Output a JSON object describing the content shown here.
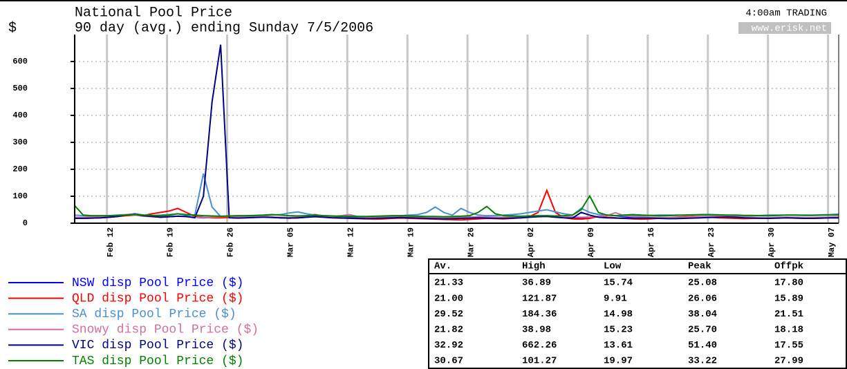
{
  "chart_data": {
    "type": "line",
    "title": "National Pool Price",
    "subtitle": "90 day (avg.) ending Sunday 7/5/2006",
    "annotation": "4:00am TRADING",
    "source": "www.erisk.net",
    "y_label": "$",
    "categories": [
      null,
      null,
      null,
      null,
      "Feb 12",
      null,
      null,
      null,
      null,
      null,
      null,
      "Feb 19",
      null,
      null,
      null,
      null,
      null,
      null,
      "Feb 26",
      null,
      null,
      null,
      null,
      null,
      null,
      "Mar 05",
      null,
      null,
      null,
      null,
      null,
      null,
      "Mar 12",
      null,
      null,
      null,
      null,
      null,
      null,
      "Mar 19",
      null,
      null,
      null,
      null,
      null,
      null,
      "Mar 26",
      null,
      null,
      null,
      null,
      null,
      null,
      "Apr 02",
      null,
      null,
      null,
      null,
      null,
      null,
      "Apr 09",
      null,
      null,
      null,
      null,
      null,
      null,
      "Apr 16",
      null,
      null,
      null,
      null,
      null,
      null,
      "Apr 23",
      null,
      null,
      null,
      null,
      null,
      null,
      "Apr 30",
      null,
      null,
      null,
      null,
      null,
      null,
      "May 07",
      null
    ],
    "ylim": [
      0,
      700
    ],
    "yticks": [
      0,
      100,
      200,
      300,
      400,
      500,
      600
    ],
    "grid": true,
    "x_grid": true,
    "series": [
      {
        "name": "NSW disp Pool Price ($)",
        "color": "#0000ff",
        "values": [
          18,
          18,
          19,
          20,
          22,
          25,
          30,
          35,
          30,
          25,
          22,
          24,
          26,
          25,
          22,
          20,
          22,
          24,
          22,
          20,
          21,
          22,
          23,
          22,
          20,
          19,
          20,
          22,
          25,
          23,
          21,
          20,
          20,
          19,
          18,
          19,
          20,
          21,
          22,
          21,
          20,
          19,
          18,
          18,
          19,
          20,
          21,
          22,
          21,
          20,
          20,
          21,
          22,
          24,
          26,
          28,
          24,
          22,
          21,
          20,
          22,
          25,
          30,
          28,
          24,
          22,
          21,
          20,
          20,
          19,
          19,
          20,
          21,
          22,
          23,
          24,
          25,
          24,
          22,
          21,
          20,
          20,
          21,
          22,
          21,
          20,
          20,
          21,
          22,
          22
        ]
      },
      {
        "name": "QLD disp Pool Price ($)",
        "color": "#ff0000",
        "values": [
          20,
          20,
          20,
          21,
          22,
          25,
          28,
          30,
          28,
          35,
          40,
          45,
          55,
          40,
          25,
          22,
          20,
          20,
          21,
          22,
          24,
          26,
          25,
          22,
          20,
          19,
          20,
          28,
          32,
          26,
          22,
          20,
          18,
          17,
          16,
          15,
          16,
          18,
          19,
          18,
          17,
          16,
          15,
          14,
          13,
          12,
          14,
          16,
          18,
          17,
          16,
          18,
          20,
          25,
          40,
          121.87,
          40,
          20,
          16,
          15,
          18,
          25,
          22,
          20,
          18,
          16,
          15,
          16,
          18,
          20,
          22,
          24,
          25,
          24,
          22,
          20,
          19,
          18,
          17,
          18,
          19,
          20,
          21,
          20,
          19,
          18,
          18,
          19,
          20,
          20
        ]
      },
      {
        "name": "SA disp Pool Price ($)",
        "color": "#4a8fd0",
        "values": [
          30,
          28,
          27,
          27,
          28,
          30,
          32,
          34,
          30,
          28,
          30,
          32,
          35,
          30,
          30,
          184.36,
          60,
          25,
          26,
          25,
          25,
          26,
          28,
          30,
          32,
          38,
          42,
          35,
          30,
          28,
          26,
          25,
          24,
          23,
          22,
          22,
          24,
          26,
          28,
          30,
          32,
          40,
          60,
          40,
          30,
          55,
          40,
          30,
          28,
          28,
          30,
          32,
          35,
          40,
          45,
          50,
          42,
          35,
          30,
          55,
          40,
          32,
          30,
          28,
          27,
          27,
          28,
          29,
          30,
          30,
          30,
          30,
          31,
          30,
          30,
          30,
          29,
          28,
          28,
          28,
          29,
          30,
          30,
          30,
          30,
          30,
          30,
          31,
          32,
          34
        ]
      },
      {
        "name": "Snowy disp Pool Price ($)",
        "color": "#d070a0",
        "values": [
          22,
          22,
          23,
          24,
          25,
          28,
          32,
          30,
          26,
          24,
          23,
          25,
          26,
          24,
          22,
          21,
          22,
          24,
          25,
          24,
          22,
          23,
          24,
          23,
          22,
          21,
          22,
          25,
          30,
          26,
          24,
          28,
          32,
          25,
          22,
          21,
          21,
          22,
          23,
          22,
          21,
          20,
          20,
          20,
          21,
          22,
          23,
          24,
          23,
          22,
          22,
          23,
          24,
          25,
          26,
          27,
          26,
          24,
          23,
          22,
          23,
          25,
          28,
          38.98,
          28,
          24,
          23,
          22,
          22,
          21,
          21,
          22,
          23,
          24,
          25,
          26,
          25,
          24,
          23,
          22,
          21,
          21,
          22,
          22,
          22,
          21,
          21,
          22,
          22,
          23
        ]
      },
      {
        "name": "VIC disp Pool Price ($)",
        "color": "#000080",
        "values": [
          18,
          18,
          19,
          20,
          22,
          25,
          30,
          33,
          28,
          25,
          22,
          24,
          26,
          25,
          20,
          100,
          450,
          662.26,
          20,
          19,
          20,
          21,
          22,
          21,
          20,
          19,
          20,
          22,
          24,
          22,
          20,
          19,
          19,
          18,
          17,
          18,
          19,
          20,
          21,
          20,
          19,
          18,
          17,
          16,
          17,
          18,
          19,
          20,
          19,
          18,
          18,
          19,
          20,
          22,
          24,
          25,
          22,
          20,
          19,
          40,
          30,
          22,
          20,
          19,
          18,
          18,
          19,
          19,
          18,
          17,
          17,
          18,
          19,
          20,
          21,
          22,
          23,
          22,
          20,
          19,
          18,
          18,
          19,
          20,
          19,
          18,
          18,
          19,
          20,
          20
        ]
      },
      {
        "name": "TAS disp Pool Price ($)",
        "color": "#008000",
        "values": [
          65,
          30,
          28,
          28,
          28,
          29,
          30,
          32,
          30,
          29,
          28,
          30,
          35,
          32,
          30,
          28,
          27,
          26,
          27,
          28,
          28,
          29,
          30,
          32,
          30,
          28,
          27,
          28,
          30,
          28,
          27,
          26,
          26,
          25,
          25,
          26,
          27,
          28,
          28,
          27,
          26,
          25,
          25,
          24,
          25,
          26,
          28,
          40,
          62,
          35,
          28,
          27,
          26,
          27,
          28,
          28,
          27,
          28,
          30,
          50,
          101.27,
          40,
          30,
          28,
          30,
          32,
          30,
          29,
          28,
          28,
          29,
          30,
          31,
          32,
          32,
          31,
          30,
          30,
          29,
          29,
          28,
          28,
          29,
          30,
          30,
          29,
          29,
          30,
          30,
          30
        ]
      }
    ],
    "stats_table": {
      "columns": [
        "Av.",
        "High",
        "Low",
        "Peak",
        "Offpk"
      ],
      "rows": [
        [
          "21.33",
          "36.89",
          "15.74",
          "25.08",
          "17.80"
        ],
        [
          "21.00",
          "121.87",
          "9.91",
          "26.06",
          "15.89"
        ],
        [
          "29.52",
          "184.36",
          "14.98",
          "38.04",
          "21.51"
        ],
        [
          "21.82",
          "38.98",
          "15.23",
          "25.70",
          "18.18"
        ],
        [
          "32.92",
          "662.26",
          "13.61",
          "51.40",
          "17.55"
        ],
        [
          "30.67",
          "101.27",
          "19.97",
          "33.22",
          "27.99"
        ]
      ]
    }
  }
}
